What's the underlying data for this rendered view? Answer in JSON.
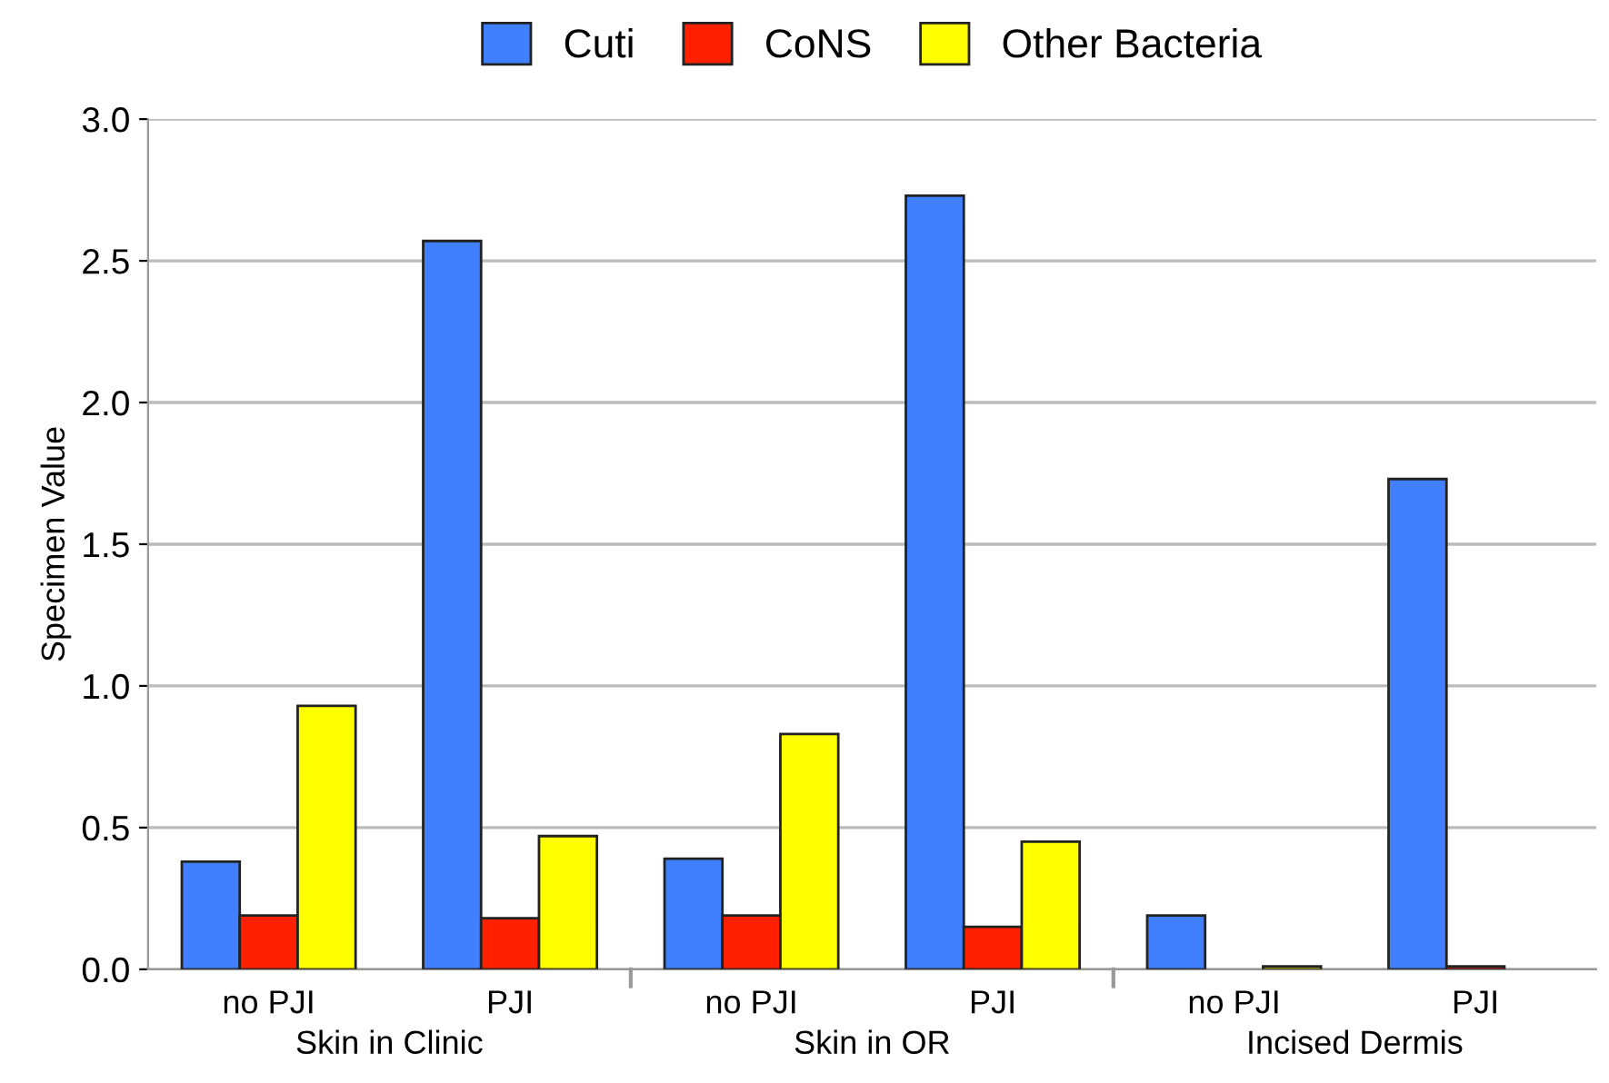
{
  "chart_data": {
    "type": "bar",
    "ylabel": "Specimen Value",
    "categories": [
      "no PJI",
      "PJI",
      "no PJI",
      "PJI",
      "no PJI",
      "PJI"
    ],
    "series": [
      {
        "name": "Cuti",
        "color": "#4080ff",
        "values": [
          0.38,
          2.57,
          0.39,
          2.73,
          0.19,
          1.73
        ]
      },
      {
        "name": "CoNS",
        "color": "#ff2000",
        "values": [
          0.19,
          0.18,
          0.19,
          0.15,
          null,
          0.01
        ]
      },
      {
        "name": "Other Bacteria",
        "color": "#ffff00",
        "values": [
          0.93,
          0.47,
          0.83,
          0.45,
          0.01,
          null
        ]
      }
    ],
    "annotations": [
      "Skin in Clinic",
      "Skin in OR",
      "Incised Dermis"
    ],
    "ylim": [
      0,
      3.0
    ],
    "yticks": [
      {
        "value": 0,
        "label": "0.0"
      },
      {
        "value": 0.5,
        "label": "0.5"
      },
      {
        "value": 1.0,
        "label": "1.0"
      },
      {
        "value": 1.5,
        "label": "1.5"
      },
      {
        "value": 2.0,
        "label": "2.0"
      },
      {
        "value": 2.5,
        "label": "2.5"
      },
      {
        "value": 3.0,
        "label": "3.0"
      }
    ],
    "grid": "y",
    "legend": "top"
  }
}
